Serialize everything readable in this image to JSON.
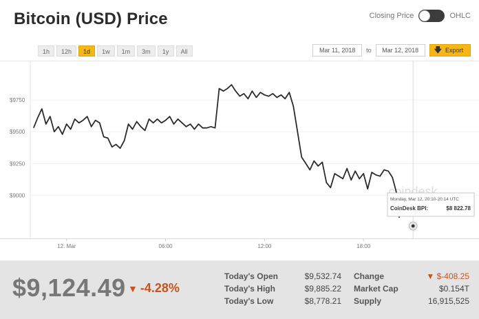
{
  "title": "Bitcoin (USD) Price",
  "toggle": {
    "left_label": "Closing Price",
    "right_label": "OHLC"
  },
  "ranges": [
    {
      "label": "1h",
      "active": false
    },
    {
      "label": "12h",
      "active": false
    },
    {
      "label": "1d",
      "active": true
    },
    {
      "label": "1w",
      "active": false
    },
    {
      "label": "1m",
      "active": false
    },
    {
      "label": "3m",
      "active": false
    },
    {
      "label": "1y",
      "active": false
    },
    {
      "label": "All",
      "active": false
    }
  ],
  "date_range": {
    "from": "Mar 11, 2018",
    "separator": "to",
    "to": "Mar 12, 2018",
    "export_label": "Export"
  },
  "chart_data": {
    "type": "line",
    "x_ticks": [
      "12. Mar",
      "06:00",
      "12:00",
      "18:00"
    ],
    "y_ticks": [
      {
        "label": "$9750",
        "value": 9750
      },
      {
        "label": "$9500",
        "value": 9500
      },
      {
        "label": "$9250",
        "value": 9250
      },
      {
        "label": "$9000",
        "value": 9000
      }
    ],
    "ylim": [
      8660,
      10060
    ],
    "x_range_hours": [
      -2.2,
      25
    ],
    "watermark": "coindesk",
    "tooltip": {
      "time": "Monday, Mar 12, 20:10-20:14 UTC",
      "label": "CoinDesk BPI:",
      "value": "$8 822.78"
    },
    "series": [
      {
        "x": [
          -2.0,
          -1.75,
          -1.5,
          -1.25,
          -1.0,
          -0.75,
          -0.5,
          -0.25,
          0.0,
          0.25,
          0.5,
          0.75,
          1.0,
          1.25,
          1.5,
          1.75,
          2.0,
          2.25,
          2.5,
          2.75,
          3.0,
          3.25,
          3.5,
          3.75,
          4.0,
          4.25,
          4.5,
          4.75,
          5.0,
          5.25,
          5.5,
          5.75,
          6.0,
          6.25,
          6.5,
          6.75,
          7.0,
          7.25,
          7.5,
          7.75,
          8.0,
          8.25,
          8.5,
          8.75,
          9.0,
          9.25,
          9.5,
          9.75,
          10.0,
          10.25,
          10.5,
          10.75,
          11.0,
          11.25,
          11.5,
          11.75,
          12.0,
          12.25,
          12.5,
          12.75,
          13.0,
          13.25,
          13.5,
          13.75,
          14.0,
          14.25,
          14.5,
          14.75,
          15.0,
          15.25,
          15.5,
          15.75,
          16.0,
          16.25,
          16.5,
          16.75,
          17.0,
          17.25,
          17.5,
          17.75,
          18.0,
          18.25,
          18.5,
          18.75,
          19.0,
          19.25,
          19.5,
          19.75,
          20.0,
          20.17
        ],
        "y": [
          9530,
          9610,
          9680,
          9560,
          9620,
          9500,
          9540,
          9480,
          9560,
          9520,
          9600,
          9570,
          9590,
          9620,
          9540,
          9590,
          9570,
          9460,
          9450,
          9380,
          9400,
          9370,
          9430,
          9560,
          9520,
          9580,
          9540,
          9510,
          9600,
          9570,
          9600,
          9570,
          9590,
          9620,
          9560,
          9600,
          9570,
          9540,
          9560,
          9520,
          9560,
          9530,
          9530,
          9540,
          9530,
          9840,
          9820,
          9840,
          9870,
          9820,
          9780,
          9800,
          9760,
          9820,
          9770,
          9810,
          9790,
          9780,
          9800,
          9770,
          9790,
          9760,
          9810,
          9700,
          9500,
          9300,
          9250,
          9200,
          9270,
          9230,
          9260,
          9100,
          9060,
          9170,
          9150,
          9130,
          9210,
          9120,
          9190,
          9130,
          9170,
          9050,
          9180,
          9160,
          9150,
          9200,
          9190,
          9140,
          9020,
          8822.78
        ]
      }
    ]
  },
  "footer": {
    "price": "$9,124.49",
    "change_symbol": "▼",
    "change": "-4.28%",
    "left_stats": [
      {
        "label": "Today's Open",
        "value": "$9,532.74"
      },
      {
        "label": "Today's High",
        "value": "$9,885.22"
      },
      {
        "label": "Today's Low",
        "value": "$8,778.21"
      }
    ],
    "right_stats": [
      {
        "label": "Change",
        "value": "▼ $-408.25",
        "negative": true
      },
      {
        "label": "Market Cap",
        "value": "$0.154T",
        "negative": false
      },
      {
        "label": "Supply",
        "value": "16,915,525",
        "negative": false
      }
    ]
  },
  "colors": {
    "accent": "#f4b618",
    "negative": "#c4541c",
    "line": "#2b2b2b"
  }
}
